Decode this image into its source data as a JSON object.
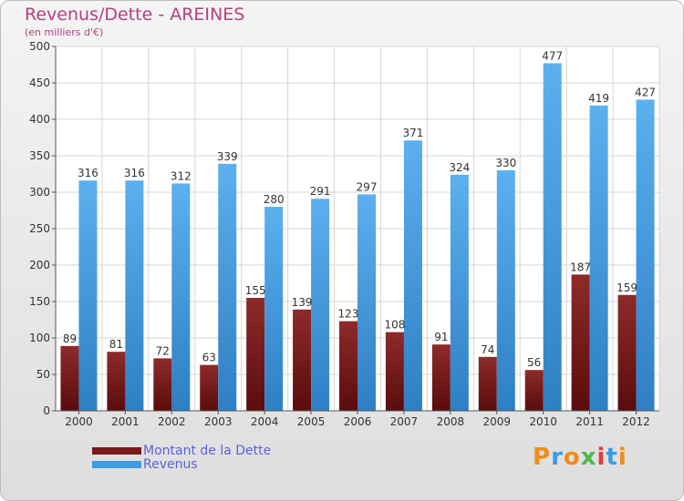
{
  "title": "Revenus/Dette - AREINES",
  "subtitle": "(en milliers d'€)",
  "colors": {
    "title": "#b5407e",
    "legend_text": "#5a63d8",
    "dette": "#7a1a1a",
    "revenus": "#3d9be3"
  },
  "chart_data": {
    "type": "bar",
    "categories": [
      "2000",
      "2001",
      "2002",
      "2003",
      "2004",
      "2005",
      "2006",
      "2007",
      "2008",
      "2009",
      "2010",
      "2011",
      "2012"
    ],
    "series": [
      {
        "name": "Montant de la Dette",
        "values": [
          89,
          81,
          72,
          63,
          155,
          139,
          123,
          108,
          91,
          74,
          56,
          187,
          159
        ]
      },
      {
        "name": "Revenus",
        "values": [
          316,
          316,
          312,
          339,
          280,
          291,
          297,
          371,
          324,
          330,
          477,
          419,
          427
        ]
      }
    ],
    "ylim": [
      0,
      500
    ],
    "yticks": [
      0,
      50,
      100,
      150,
      200,
      250,
      300,
      350,
      400,
      450,
      500
    ],
    "grid": true,
    "legend_position": "bottom-left"
  },
  "legend": [
    {
      "label": "Montant de la Dette",
      "color": "#7a1a1a"
    },
    {
      "label": "Revenus",
      "color": "#3d9be3"
    }
  ],
  "logo": {
    "letters": [
      "P",
      "r",
      "o",
      "x",
      "i",
      "t",
      "i"
    ],
    "colors": [
      "#f28c1a",
      "#3d9be3",
      "#f28c1a",
      "#4cb847",
      "#e23c3c",
      "#3d9be3",
      "#f28c1a"
    ]
  }
}
